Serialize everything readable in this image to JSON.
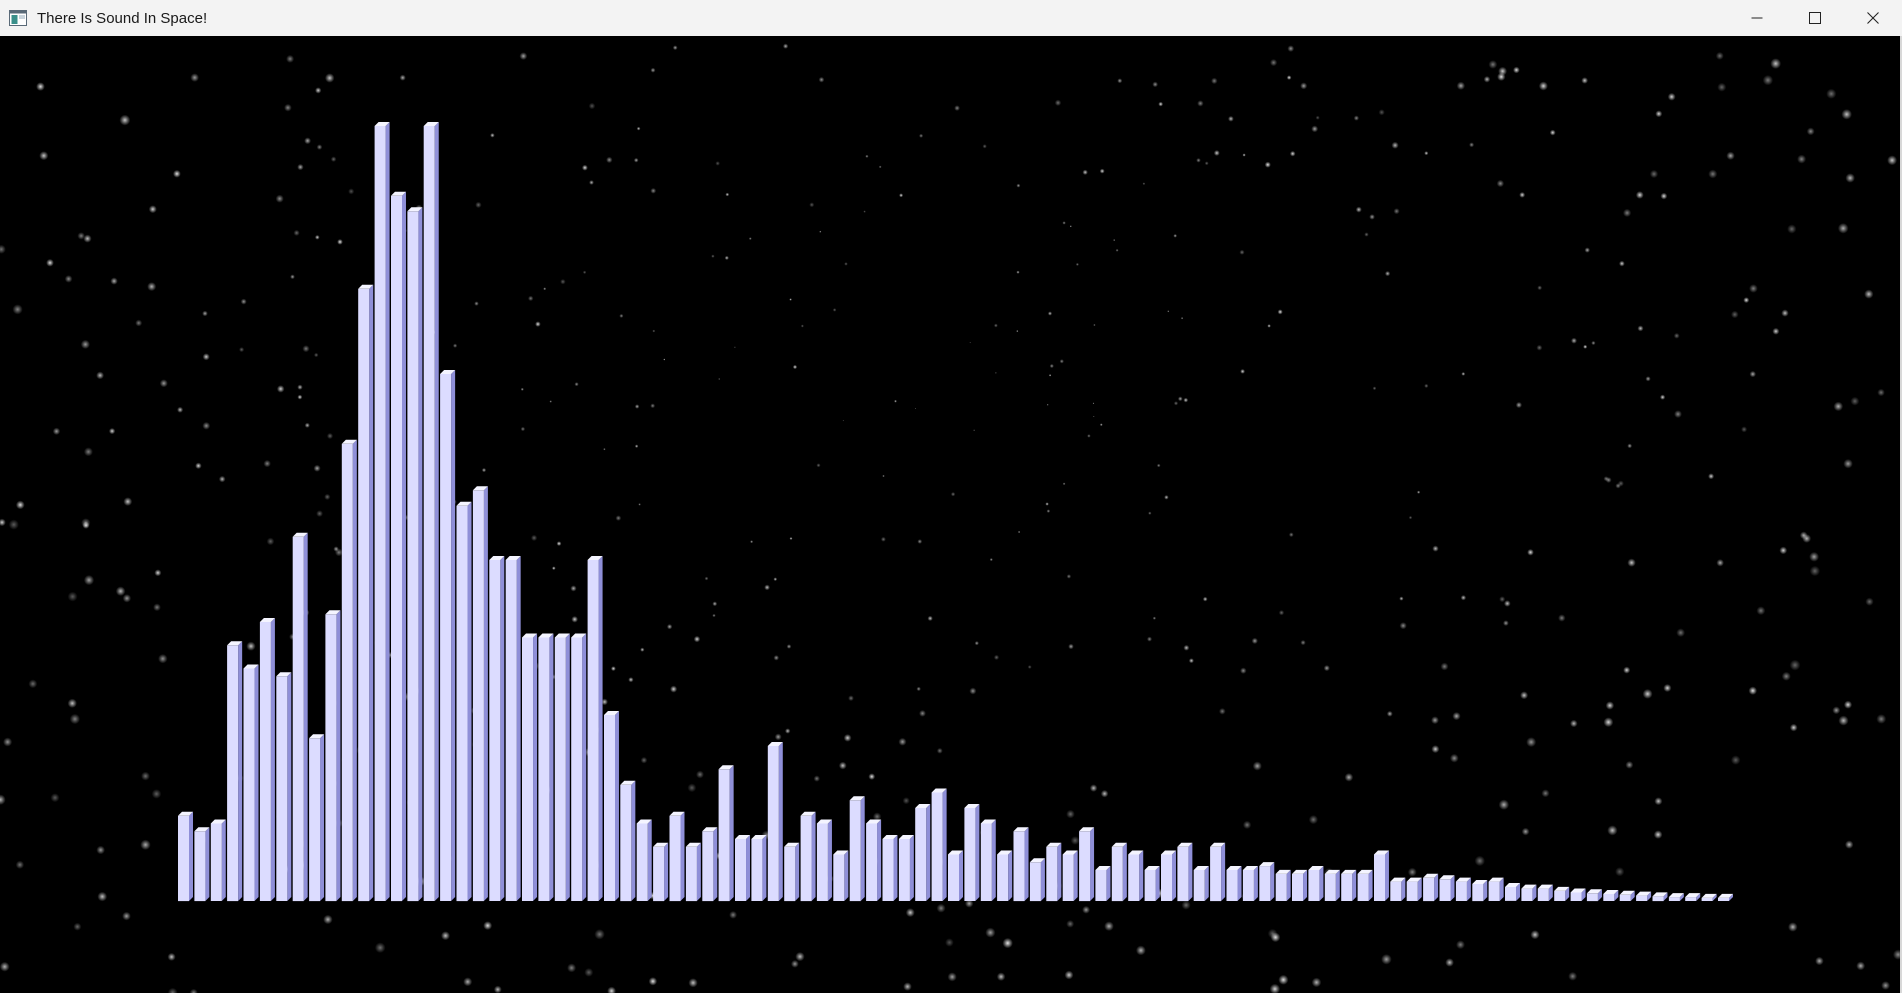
{
  "window": {
    "title": "There Is Sound In Space!",
    "icons": {
      "app": "app-window-icon",
      "minimize": "minimize-icon",
      "maximize": "maximize-icon",
      "close": "close-icon"
    }
  },
  "scene": {
    "background_color": "#000000",
    "bar_front_color": "#dcdcff",
    "bar_side_color": "#8f8fd8",
    "bar_top_color": "#f4f4ff",
    "star_color": "#ffffff"
  },
  "chart_data": {
    "type": "bar",
    "title": "",
    "xlabel": "",
    "ylabel": "",
    "ylim": [
      0,
      1
    ],
    "grid": false,
    "values": [
      0.11,
      0.09,
      0.1,
      0.33,
      0.3,
      0.36,
      0.29,
      0.47,
      0.21,
      0.37,
      0.59,
      0.79,
      1.0,
      0.91,
      0.89,
      1.0,
      0.68,
      0.51,
      0.53,
      0.44,
      0.44,
      0.34,
      0.34,
      0.34,
      0.34,
      0.44,
      0.24,
      0.15,
      0.1,
      0.07,
      0.11,
      0.07,
      0.09,
      0.17,
      0.08,
      0.08,
      0.2,
      0.07,
      0.11,
      0.1,
      0.06,
      0.13,
      0.1,
      0.08,
      0.08,
      0.12,
      0.14,
      0.06,
      0.12,
      0.1,
      0.06,
      0.09,
      0.05,
      0.07,
      0.06,
      0.09,
      0.04,
      0.07,
      0.06,
      0.04,
      0.06,
      0.07,
      0.04,
      0.07,
      0.04,
      0.04,
      0.045,
      0.035,
      0.035,
      0.04,
      0.035,
      0.035,
      0.035,
      0.06,
      0.025,
      0.025,
      0.03,
      0.028,
      0.025,
      0.022,
      0.025,
      0.018,
      0.016,
      0.016,
      0.013,
      0.011,
      0.01,
      0.009,
      0.008,
      0.007,
      0.006,
      0.005,
      0.005,
      0.004,
      0.004
    ]
  }
}
